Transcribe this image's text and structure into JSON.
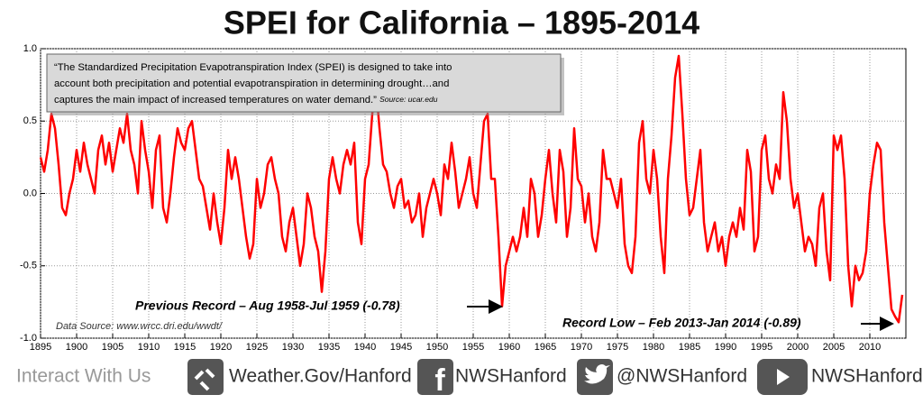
{
  "chart_data": {
    "type": "line",
    "title": "SPEI for California – 1895-2014",
    "quote": [
      "“The Standardized Precipitation Evapotranspiration Index (SPEI) is designed to take into",
      "account both precipitation and potential evapotranspiration in determining drought…and",
      "captures the main impact of increased temperatures on water demand.”"
    ],
    "quote_source": "Source: ucar.edu",
    "annotations": [
      "Previous Record – Aug 1958-Jul 1959 (-0.78)",
      "Record Low – Feb 2013-Jan 2014 (-0.89)"
    ],
    "data_source": "Data Source: www.wrcc.dri.edu/wwdt/",
    "footer": {
      "label": "Interact With Us",
      "links": [
        "Weather.Gov/Hanford",
        "NWSHanford",
        "@NWSHanford",
        "NWSHanford"
      ]
    },
    "xlim": [
      1895,
      2015
    ],
    "xticks": [
      1895,
      1900,
      1905,
      1910,
      1915,
      1920,
      1925,
      1930,
      1935,
      1940,
      1945,
      1950,
      1955,
      1960,
      1965,
      1970,
      1975,
      1980,
      1985,
      1990,
      1995,
      2000,
      2005,
      2010
    ],
    "ylim": [
      -1.0,
      1.0
    ],
    "yticks": [
      {
        "value": -1.0,
        "label": "-1.0"
      },
      {
        "value": -0.5,
        "label": "-0.5"
      },
      {
        "value": 0.0,
        "label": "0.0"
      },
      {
        "value": 0.5,
        "label": "0.5"
      },
      {
        "value": 1.0,
        "label": "1.0"
      }
    ],
    "grid": true,
    "series": [
      {
        "color": "#ff0000",
        "x": [
          1895,
          1895.5,
          1896,
          1896.5,
          1897,
          1897.5,
          1898,
          1898.5,
          1899,
          1899.5,
          1900,
          1900.5,
          1901,
          1901.5,
          1902,
          1902.5,
          1903,
          1903.5,
          1904,
          1904.5,
          1905,
          1905.5,
          1906,
          1906.5,
          1907,
          1907.5,
          1908,
          1908.5,
          1909,
          1909.5,
          1910,
          1910.5,
          1911,
          1911.5,
          1912,
          1912.5,
          1913,
          1913.5,
          1914,
          1914.5,
          1915,
          1915.5,
          1916,
          1916.5,
          1917,
          1917.5,
          1918,
          1918.5,
          1919,
          1919.5,
          1920,
          1920.5,
          1921,
          1921.5,
          1922,
          1922.5,
          1923,
          1923.5,
          1924,
          1924.5,
          1925,
          1925.5,
          1926,
          1926.5,
          1927,
          1927.5,
          1928,
          1928.5,
          1929,
          1929.5,
          1930,
          1930.5,
          1931,
          1931.5,
          1932,
          1932.5,
          1933,
          1933.5,
          1934,
          1934.5,
          1935,
          1935.5,
          1936,
          1936.5,
          1937,
          1937.5,
          1938,
          1938.5,
          1939,
          1939.5,
          1940,
          1940.5,
          1941,
          1941.5,
          1942,
          1942.5,
          1943,
          1943.5,
          1944,
          1944.5,
          1945,
          1945.5,
          1946,
          1946.5,
          1947,
          1947.5,
          1948,
          1948.5,
          1949,
          1949.5,
          1950,
          1950.5,
          1951,
          1951.5,
          1952,
          1952.5,
          1953,
          1953.5,
          1954,
          1954.5,
          1955,
          1955.5,
          1956,
          1956.5,
          1957,
          1957.5,
          1958,
          1958.5,
          1959,
          1959.5,
          1960,
          1960.5,
          1961,
          1961.5,
          1962,
          1962.5,
          1963,
          1963.5,
          1964,
          1964.5,
          1965,
          1965.5,
          1966,
          1966.5,
          1967,
          1967.5,
          1968,
          1968.5,
          1969,
          1969.5,
          1970,
          1970.5,
          1971,
          1971.5,
          1972,
          1972.5,
          1973,
          1973.5,
          1974,
          1974.5,
          1975,
          1975.5,
          1976,
          1976.5,
          1977,
          1977.5,
          1978,
          1978.5,
          1979,
          1979.5,
          1980,
          1980.5,
          1981,
          1981.5,
          1982,
          1982.5,
          1983,
          1983.5,
          1984,
          1984.5,
          1985,
          1985.5,
          1986,
          1986.5,
          1987,
          1987.5,
          1988,
          1988.5,
          1989,
          1989.5,
          1990,
          1990.5,
          1991,
          1991.5,
          1992,
          1992.5,
          1993,
          1993.5,
          1994,
          1994.5,
          1995,
          1995.5,
          1996,
          1996.5,
          1997,
          1997.5,
          1998,
          1998.5,
          1999,
          1999.5,
          2000,
          2000.5,
          2001,
          2001.5,
          2002,
          2002.5,
          2003,
          2003.5,
          2004,
          2004.5,
          2005,
          2005.5,
          2006,
          2006.5,
          2007,
          2007.5,
          2008,
          2008.5,
          2009,
          2009.5,
          2010,
          2010.5,
          2011,
          2011.5,
          2012,
          2012.5,
          2013,
          2013.5,
          2014,
          2014.5
        ],
        "values": [
          0.25,
          0.15,
          0.3,
          0.55,
          0.45,
          0.2,
          -0.1,
          -0.15,
          0.0,
          0.1,
          0.3,
          0.15,
          0.35,
          0.2,
          0.1,
          0.0,
          0.3,
          0.4,
          0.2,
          0.35,
          0.15,
          0.3,
          0.45,
          0.35,
          0.55,
          0.3,
          0.2,
          0.0,
          0.5,
          0.3,
          0.15,
          -0.1,
          0.3,
          0.4,
          -0.1,
          -0.2,
          0.0,
          0.25,
          0.45,
          0.35,
          0.3,
          0.45,
          0.5,
          0.3,
          0.1,
          0.05,
          -0.1,
          -0.25,
          0.0,
          -0.2,
          -0.35,
          -0.1,
          0.3,
          0.1,
          0.25,
          0.1,
          -0.1,
          -0.3,
          -0.45,
          -0.35,
          0.1,
          -0.1,
          0.0,
          0.2,
          0.25,
          0.1,
          0.0,
          -0.3,
          -0.4,
          -0.2,
          -0.1,
          -0.3,
          -0.5,
          -0.35,
          0.0,
          -0.1,
          -0.3,
          -0.4,
          -0.68,
          -0.4,
          0.1,
          0.25,
          0.1,
          0.0,
          0.2,
          0.3,
          0.2,
          0.35,
          -0.2,
          -0.35,
          0.1,
          0.2,
          0.55,
          0.75,
          0.45,
          0.2,
          0.15,
          0.0,
          -0.1,
          0.05,
          0.1,
          -0.1,
          -0.05,
          -0.2,
          -0.15,
          0.0,
          -0.3,
          -0.1,
          0.0,
          0.1,
          0.0,
          -0.15,
          0.2,
          0.1,
          0.35,
          0.15,
          -0.1,
          0.0,
          0.1,
          0.25,
          0.0,
          -0.1,
          0.2,
          0.5,
          0.55,
          0.1,
          0.1,
          -0.3,
          -0.78,
          -0.5,
          -0.4,
          -0.3,
          -0.4,
          -0.3,
          -0.1,
          -0.3,
          0.1,
          0.0,
          -0.3,
          -0.15,
          0.1,
          0.3,
          0.0,
          -0.2,
          0.3,
          0.15,
          -0.3,
          -0.1,
          0.45,
          0.1,
          0.05,
          -0.2,
          0.0,
          -0.3,
          -0.4,
          -0.2,
          0.3,
          0.1,
          0.1,
          0.0,
          -0.1,
          0.1,
          -0.35,
          -0.5,
          -0.55,
          -0.3,
          0.35,
          0.5,
          0.1,
          0.0,
          0.3,
          0.1,
          -0.3,
          -0.55,
          0.1,
          0.4,
          0.8,
          0.95,
          0.55,
          0.1,
          -0.15,
          -0.1,
          0.1,
          0.3,
          -0.2,
          -0.4,
          -0.3,
          -0.2,
          -0.4,
          -0.3,
          -0.5,
          -0.3,
          -0.2,
          -0.3,
          -0.1,
          -0.25,
          0.3,
          0.15,
          -0.4,
          -0.3,
          0.3,
          0.4,
          0.1,
          0.0,
          0.2,
          0.1,
          0.7,
          0.5,
          0.1,
          -0.1,
          0.0,
          -0.2,
          -0.4,
          -0.3,
          -0.35,
          -0.5,
          -0.1,
          0.0,
          -0.4,
          -0.6,
          0.4,
          0.3,
          0.4,
          0.1,
          -0.5,
          -0.78,
          -0.5,
          -0.6,
          -0.55,
          -0.4,
          0.0,
          0.2,
          0.35,
          0.3,
          -0.2,
          -0.5,
          -0.8,
          -0.85,
          -0.89,
          -0.7
        ]
      }
    ]
  }
}
